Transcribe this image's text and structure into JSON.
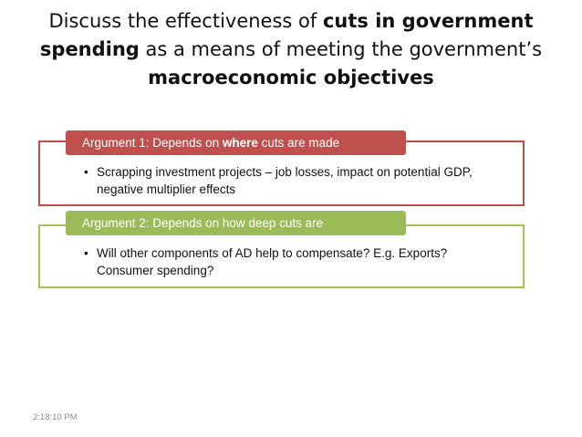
{
  "title": {
    "part1": "Discuss the effectiveness of ",
    "bold1": "cuts in government spending",
    "part2": " as a means of meeting the government’s ",
    "bold2": "macroeconomic objectives"
  },
  "arguments": [
    {
      "tab_prefix": "Argument 1: Depends on ",
      "tab_bold": "where",
      "tab_suffix": " cuts are made",
      "bullet": "Scrapping investment projects – job losses, impact on potential GDP, negative multiplier effects",
      "color": "#c0504d"
    },
    {
      "tab_prefix": "Argument 2: Depends on how deep cuts are",
      "tab_bold": "",
      "tab_suffix": "",
      "bullet": "Will other components of AD help to compensate? E.g. Exports? Consumer spending?",
      "color": "#9bbb59"
    }
  ],
  "bullet_symbol": "•",
  "timestamp": "2:18:10 PM"
}
